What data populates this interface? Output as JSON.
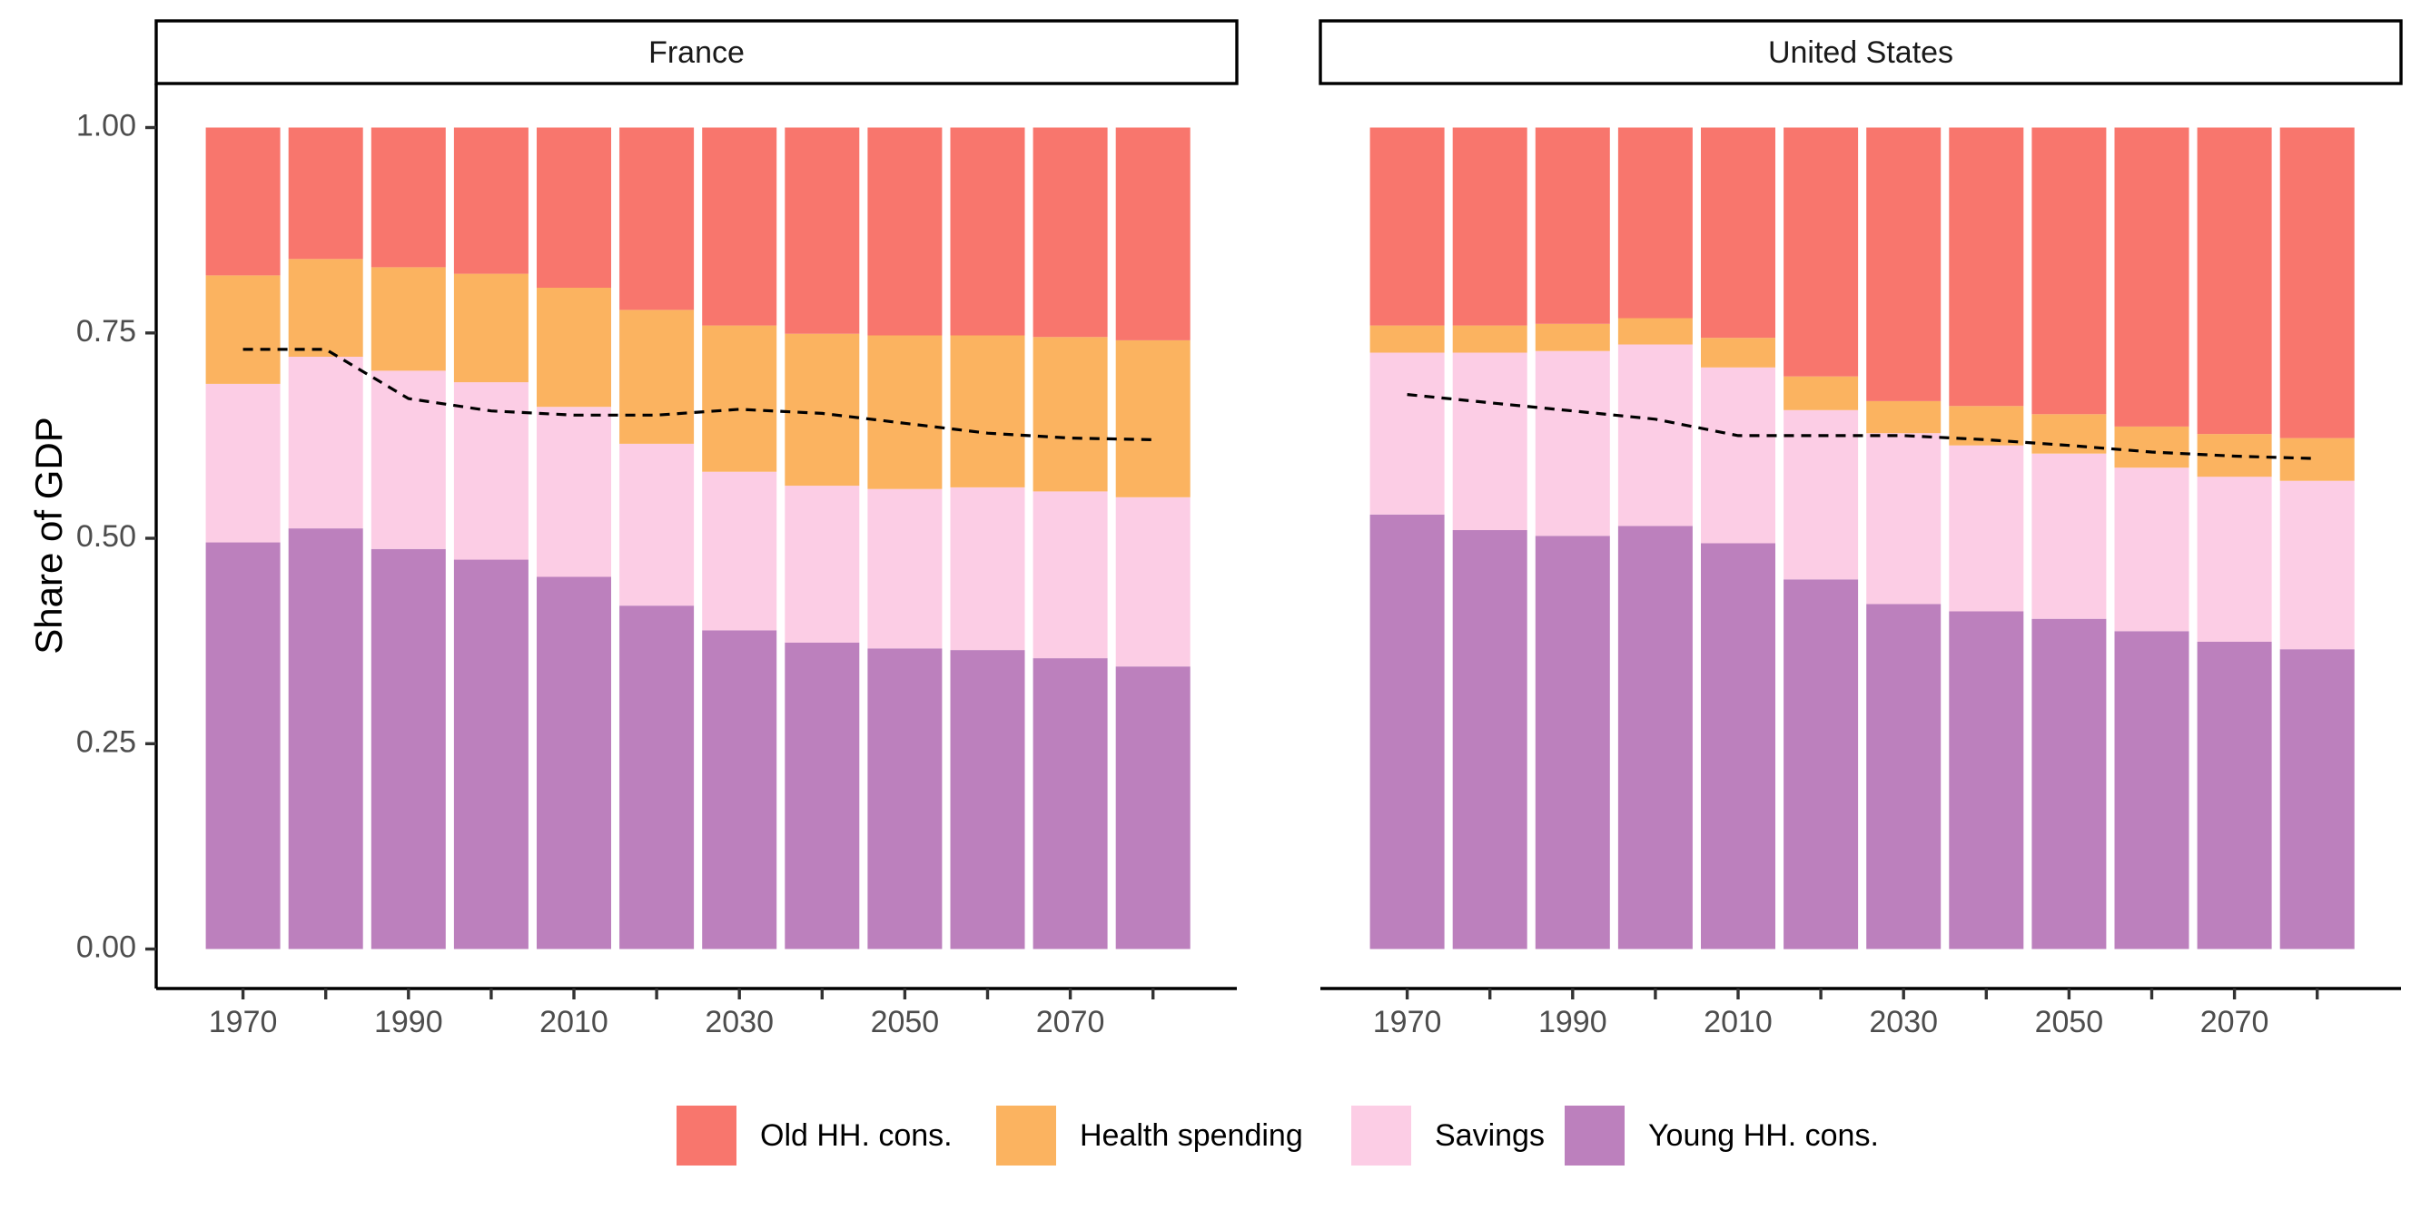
{
  "chart_data": {
    "type": "bar",
    "stacked": true,
    "ylabel": "Share of GDP",
    "xlabel": "",
    "ylim": [
      0,
      1
    ],
    "y_ticks": [
      "0.00",
      "0.25",
      "0.50",
      "0.75",
      "1.00"
    ],
    "x_ticks": [
      1970,
      1980,
      1990,
      2000,
      2010,
      2020,
      2030,
      2040,
      2050,
      2060,
      2070,
      2080
    ],
    "x_tick_labels": [
      "1970",
      "1990",
      "2010",
      "2030",
      "2050",
      "2070"
    ],
    "legend_position": "bottom",
    "legend": [
      {
        "name": "Old HH. cons.",
        "color": "#F8766D"
      },
      {
        "name": "Health spending",
        "color": "#FBB360"
      },
      {
        "name": "Savings",
        "color": "#FCCDE5"
      },
      {
        "name": "Young HH. cons.",
        "color": "#BC80BD"
      }
    ],
    "panels": [
      {
        "title": "France",
        "years": [
          1970,
          1980,
          1990,
          2000,
          2010,
          2020,
          2030,
          2040,
          2050,
          2060,
          2070,
          2080
        ],
        "series": [
          {
            "name": "Young HH. cons.",
            "values": [
              0.495,
              0.512,
              0.487,
              0.474,
              0.453,
              0.418,
              0.388,
              0.373,
              0.366,
              0.364,
              0.354,
              0.344
            ]
          },
          {
            "name": "Savings",
            "values": [
              0.193,
              0.209,
              0.217,
              0.216,
              0.207,
              0.197,
              0.193,
              0.191,
              0.194,
              0.198,
              0.203,
              0.206
            ]
          },
          {
            "name": "Health spending",
            "values": [
              0.132,
              0.119,
              0.126,
              0.132,
              0.145,
              0.163,
              0.178,
              0.185,
              0.187,
              0.185,
              0.188,
              0.191
            ]
          },
          {
            "name": "Old HH. cons.",
            "values": [
              0.18,
              0.16,
              0.17,
              0.178,
              0.195,
              0.222,
              0.241,
              0.251,
              0.253,
              0.253,
              0.255,
              0.259
            ]
          }
        ],
        "dashed_line": [
          0.73,
          0.73,
          0.67,
          0.655,
          0.65,
          0.65,
          0.657,
          0.652,
          0.64,
          0.628,
          0.622,
          0.62
        ]
      },
      {
        "title": "United States",
        "years": [
          1970,
          1980,
          1990,
          2000,
          2010,
          2020,
          2030,
          2040,
          2050,
          2060,
          2070,
          2080
        ],
        "series": [
          {
            "name": "Young HH. cons.",
            "values": [
              0.529,
              0.51,
              0.503,
              0.515,
              0.494,
              0.45,
              0.42,
              0.411,
              0.402,
              0.387,
              0.374,
              0.365
            ]
          },
          {
            "name": "Savings",
            "values": [
              0.197,
              0.216,
              0.225,
              0.221,
              0.214,
              0.206,
              0.208,
              0.202,
              0.201,
              0.199,
              0.201,
              0.205
            ]
          },
          {
            "name": "Health spending",
            "values": [
              0.033,
              0.033,
              0.033,
              0.032,
              0.036,
              0.041,
              0.039,
              0.048,
              0.048,
              0.05,
              0.052,
              0.052
            ]
          },
          {
            "name": "Old HH. cons.",
            "values": [
              0.241,
              0.241,
              0.239,
              0.232,
              0.256,
              0.303,
              0.333,
              0.339,
              0.349,
              0.364,
              0.373,
              0.378
            ]
          }
        ],
        "dashed_line": [
          0.675,
          0.665,
          0.655,
          0.645,
          0.625,
          0.625,
          0.625,
          0.62,
          0.613,
          0.605,
          0.6,
          0.597
        ]
      }
    ]
  }
}
